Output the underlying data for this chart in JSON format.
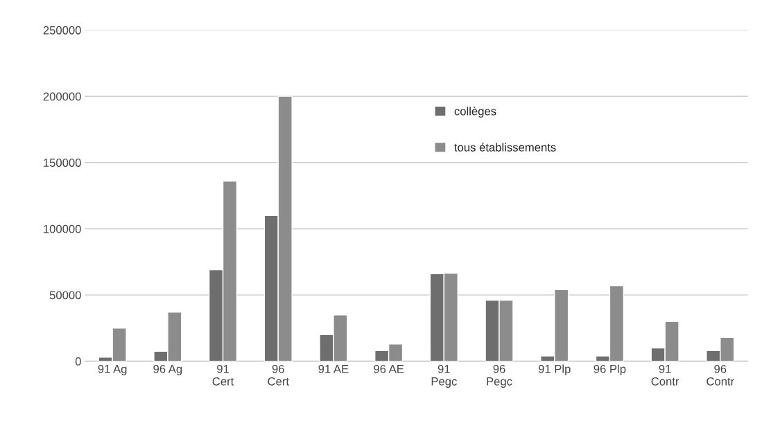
{
  "chart_data": {
    "type": "bar",
    "categories": [
      "91 Ag",
      "96 Ag",
      "91\nCert",
      "96\nCert",
      "91 AE",
      "96 AE",
      "91\nPegc",
      "96\nPegc",
      "91 Plp",
      "96 Plp",
      "91\nContr",
      "96\nContr"
    ],
    "series": [
      {
        "name": "collèges",
        "color": "#6e6e6e",
        "values": [
          3000,
          7500,
          69000,
          110000,
          20000,
          8000,
          66000,
          46000,
          4000,
          4000,
          10000,
          8000
        ]
      },
      {
        "name": "tous établissements",
        "color": "#8c8c8c",
        "values": [
          25000,
          37000,
          136000,
          200000,
          35000,
          13000,
          66500,
          46000,
          54000,
          57000,
          30000,
          18000
        ]
      }
    ],
    "ylim": [
      0,
      250000
    ],
    "yticks": [
      0,
      50000,
      100000,
      150000,
      200000,
      250000
    ],
    "grid": "y",
    "legend": "top"
  }
}
